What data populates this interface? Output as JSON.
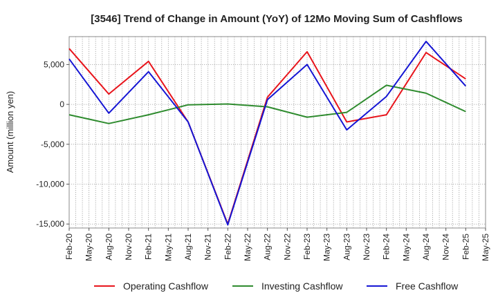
{
  "chart_data": {
    "type": "line",
    "title": "[3546]  Trend of Change in Amount (YoY) of 12Mo Moving Sum of Cashflows",
    "xlabel": "",
    "ylabel": "Amount (million yen)",
    "ylim": [
      -15500,
      8500
    ],
    "yticks": [
      5000,
      0,
      -5000,
      -10000,
      -15000
    ],
    "ytick_labels": [
      "5,000",
      "0",
      "-5,000",
      "-10,000",
      "-15,000"
    ],
    "categories": [
      "Feb-20",
      "May-20",
      "Aug-20",
      "Nov-20",
      "Feb-21",
      "May-21",
      "Aug-21",
      "Nov-21",
      "Feb-22",
      "May-22",
      "Aug-22",
      "Nov-22",
      "Feb-23",
      "May-23",
      "Aug-23",
      "Nov-23",
      "Feb-24",
      "May-24",
      "Aug-24",
      "Nov-24",
      "Feb-25",
      "May-25"
    ],
    "grid": true,
    "legend_position": "bottom",
    "series": [
      {
        "name": "Operating Cashflow",
        "color": "#e8141b",
        "values": [
          7000,
          null,
          1300,
          null,
          5400,
          null,
          -2200,
          null,
          -15000,
          null,
          900,
          null,
          6600,
          null,
          -2200,
          null,
          -1300,
          null,
          6500,
          null,
          3200,
          null
        ]
      },
      {
        "name": "Investing Cashflow",
        "color": "#2e8b2e",
        "values": [
          -1300,
          null,
          -2400,
          null,
          -1300,
          null,
          -50,
          null,
          50,
          null,
          -300,
          null,
          -1600,
          null,
          -1000,
          null,
          2400,
          null,
          1400,
          null,
          -900,
          null
        ]
      },
      {
        "name": "Free Cashflow",
        "color": "#1515d4",
        "values": [
          5700,
          null,
          -1100,
          null,
          4100,
          null,
          -2200,
          null,
          -15100,
          null,
          600,
          null,
          5000,
          null,
          -3200,
          null,
          1000,
          null,
          7900,
          null,
          2300,
          null
        ]
      }
    ]
  }
}
